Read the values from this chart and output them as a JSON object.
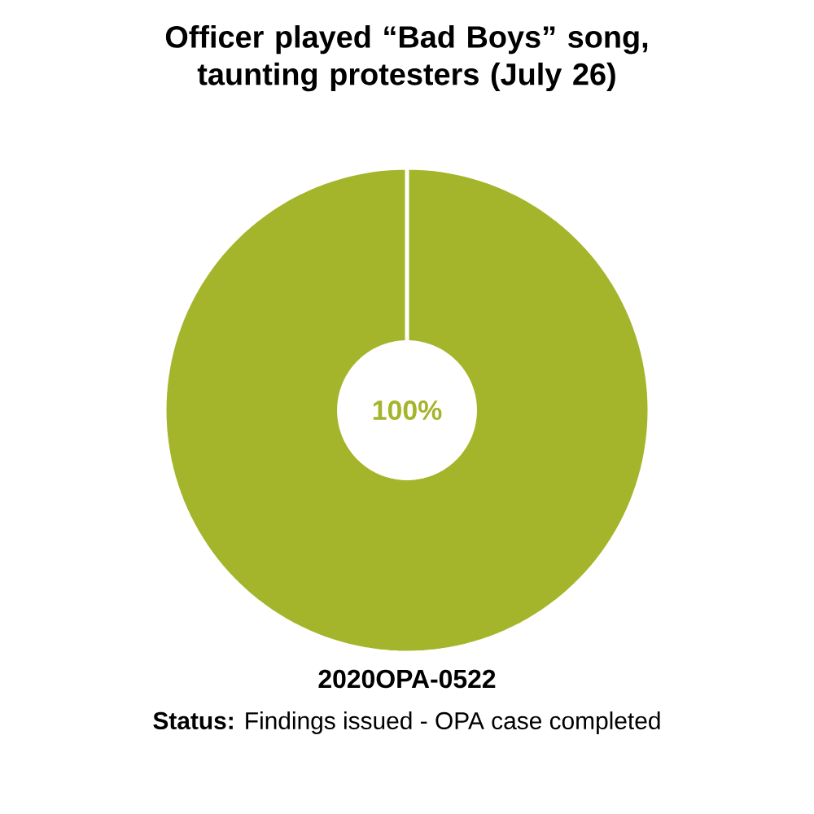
{
  "chart_data": {
    "type": "donut",
    "title": "Officer played “Bad Boys” song, taunting protesters (July 26)",
    "categories": [
      null
    ],
    "values": [
      100
    ],
    "colors": [
      "#a5b52b"
    ],
    "value_labels": [
      "100%"
    ],
    "legend": false,
    "annotations": [
      "2020OPA-0522",
      "**Status:** Findings issued - OPA case completed"
    ]
  }
}
